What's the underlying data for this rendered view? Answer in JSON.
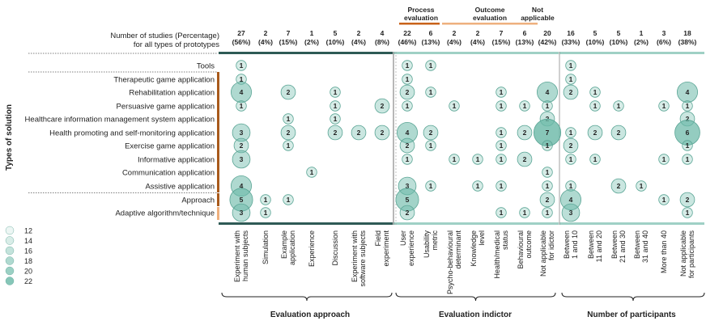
{
  "chart_data": {
    "type": "bubble-matrix",
    "header_note_line1": "Number of studies (Percentage)",
    "header_note_line2": "for all types of prototypes",
    "y_axis_label": "Types of solution",
    "section_labels": [
      "Evaluation approach",
      "Evaluation indictor",
      "Number of participants"
    ],
    "group_labels": [
      {
        "line1": "Process",
        "line2": "evaluation"
      },
      {
        "line1": "Outcome",
        "line2": "evaluation"
      },
      {
        "line1": "Not",
        "line2": "applicable"
      }
    ],
    "colors": {
      "approach_band": "#2e5a55",
      "indicator_band": "#9fd0c5",
      "participants_band": "#9fd0c5",
      "process_color": "#c8631a",
      "outcome_color": "#eeb07e",
      "rowbar_dark": "#a85a1c",
      "rowbar_light": "#eeb07e",
      "bubble_fill": "#6bb9a8",
      "bubble_stroke": "#5aa595"
    },
    "columns": [
      {
        "label": "Experiment with human subjects",
        "count": "27",
        "pct": "(56%)"
      },
      {
        "label": "Simulation",
        "count": "2",
        "pct": "(4%)"
      },
      {
        "label": "Example application",
        "count": "7",
        "pct": "(15%)"
      },
      {
        "label": "Experience",
        "count": "1",
        "pct": "(2%)"
      },
      {
        "label": "Discussion",
        "count": "5",
        "pct": "(10%)"
      },
      {
        "label": "Experiment with software subjects",
        "count": "2",
        "pct": "(4%)"
      },
      {
        "label": "Field experiment",
        "count": "4",
        "pct": "(8%)"
      },
      {
        "label": "User experience",
        "count": "22",
        "pct": "(46%)"
      },
      {
        "label": "Usability metric",
        "count": "6",
        "pct": "(13%)"
      },
      {
        "label": "Psycho-behavioural determinant",
        "count": "2",
        "pct": "(4%)"
      },
      {
        "label": "Knowledge level",
        "count": "2",
        "pct": "(4%)"
      },
      {
        "label": "Health/medical status",
        "count": "7",
        "pct": "(15%)"
      },
      {
        "label": "Behavioural outcome",
        "count": "6",
        "pct": "(13%)"
      },
      {
        "label": "Not applicable for idictor",
        "count": "20",
        "pct": "(42%)"
      },
      {
        "label": "Between 1 and 10",
        "count": "16",
        "pct": "(33%)"
      },
      {
        "label": "Between 11 and 20",
        "count": "5",
        "pct": "(10%)"
      },
      {
        "label": "Between 21 and 30",
        "count": "5",
        "pct": "(10%)"
      },
      {
        "label": "Between 31 and 40",
        "count": "1",
        "pct": "(2%)"
      },
      {
        "label": "More than 40",
        "count": "3",
        "pct": "(6%)"
      },
      {
        "label": "Not applicable for participants",
        "count": "18",
        "pct": "(38%)"
      }
    ],
    "rows": [
      "Tools",
      "Therapeutic game application",
      "Rehabilitation application",
      "Persuasive game application",
      "Healthcare information management system application",
      "Health promoting and self-monitoring application",
      "Exercise game application",
      "Informative application",
      "Communication application",
      "Assistive application",
      "Approach",
      "Adaptive algorithm/technique"
    ],
    "cells": [
      [
        0,
        0,
        1
      ],
      [
        0,
        7,
        1
      ],
      [
        0,
        8,
        1
      ],
      [
        0,
        14,
        1
      ],
      [
        1,
        0,
        1
      ],
      [
        1,
        7,
        1
      ],
      [
        1,
        14,
        1
      ],
      [
        2,
        0,
        4
      ],
      [
        2,
        2,
        2
      ],
      [
        2,
        4,
        1
      ],
      [
        2,
        7,
        2
      ],
      [
        2,
        8,
        1
      ],
      [
        2,
        11,
        1
      ],
      [
        2,
        13,
        4
      ],
      [
        2,
        14,
        2
      ],
      [
        2,
        15,
        1
      ],
      [
        2,
        19,
        4
      ],
      [
        3,
        0,
        1
      ],
      [
        3,
        4,
        1
      ],
      [
        3,
        6,
        2
      ],
      [
        3,
        7,
        1
      ],
      [
        3,
        9,
        1
      ],
      [
        3,
        11,
        1
      ],
      [
        3,
        12,
        1
      ],
      [
        3,
        13,
        1
      ],
      [
        3,
        15,
        1
      ],
      [
        3,
        16,
        1
      ],
      [
        3,
        18,
        1
      ],
      [
        3,
        19,
        1
      ],
      [
        4,
        2,
        1
      ],
      [
        4,
        4,
        1
      ],
      [
        4,
        13,
        2
      ],
      [
        4,
        19,
        2
      ],
      [
        5,
        0,
        3
      ],
      [
        5,
        2,
        2
      ],
      [
        5,
        4,
        2
      ],
      [
        5,
        5,
        2
      ],
      [
        5,
        6,
        2
      ],
      [
        5,
        7,
        4
      ],
      [
        5,
        8,
        2
      ],
      [
        5,
        11,
        1
      ],
      [
        5,
        12,
        2
      ],
      [
        5,
        13,
        7
      ],
      [
        5,
        14,
        1
      ],
      [
        5,
        15,
        2
      ],
      [
        5,
        16,
        2
      ],
      [
        5,
        19,
        6
      ],
      [
        6,
        0,
        2
      ],
      [
        6,
        2,
        1
      ],
      [
        6,
        7,
        2
      ],
      [
        6,
        8,
        1
      ],
      [
        6,
        11,
        1
      ],
      [
        6,
        13,
        1
      ],
      [
        6,
        14,
        2
      ],
      [
        6,
        19,
        1
      ],
      [
        7,
        0,
        3
      ],
      [
        7,
        7,
        1
      ],
      [
        7,
        9,
        1
      ],
      [
        7,
        10,
        1
      ],
      [
        7,
        11,
        1
      ],
      [
        7,
        12,
        2
      ],
      [
        7,
        14,
        1
      ],
      [
        7,
        15,
        1
      ],
      [
        7,
        18,
        1
      ],
      [
        7,
        19,
        1
      ],
      [
        8,
        3,
        1
      ],
      [
        8,
        13,
        1
      ],
      [
        9,
        0,
        4
      ],
      [
        9,
        7,
        3
      ],
      [
        9,
        8,
        1
      ],
      [
        9,
        10,
        1
      ],
      [
        9,
        11,
        1
      ],
      [
        9,
        13,
        1
      ],
      [
        9,
        14,
        1
      ],
      [
        9,
        16,
        2
      ],
      [
        9,
        17,
        1
      ],
      [
        10,
        0,
        5
      ],
      [
        10,
        1,
        1
      ],
      [
        10,
        2,
        1
      ],
      [
        10,
        7,
        5
      ],
      [
        10,
        13,
        2
      ],
      [
        10,
        14,
        4
      ],
      [
        10,
        18,
        1
      ],
      [
        10,
        19,
        2
      ],
      [
        11,
        0,
        3
      ],
      [
        11,
        1,
        1
      ],
      [
        11,
        7,
        2
      ],
      [
        11,
        11,
        1
      ],
      [
        11,
        12,
        1
      ],
      [
        11,
        13,
        1
      ],
      [
        11,
        14,
        3
      ],
      [
        11,
        19,
        1
      ]
    ],
    "legend": {
      "title": "",
      "values": [
        12,
        14,
        16,
        18,
        20,
        22
      ]
    }
  }
}
